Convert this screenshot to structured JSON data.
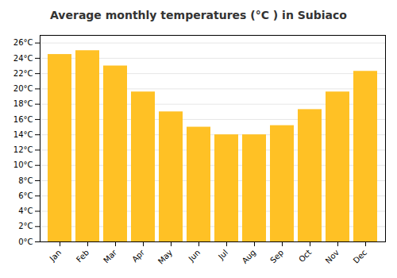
{
  "chart_data": {
    "type": "bar",
    "title": "Average monthly temperatures (°C ) in Subiaco",
    "categories": [
      "Jan",
      "Feb",
      "Mar",
      "Apr",
      "May",
      "Jun",
      "Jul",
      "Aug",
      "Sep",
      "Oct",
      "Nov",
      "Dec"
    ],
    "values": [
      24.5,
      25.0,
      23.0,
      19.6,
      17.0,
      15.0,
      14.0,
      14.0,
      15.2,
      17.3,
      19.6,
      22.3
    ],
    "color": "#FFC125",
    "ylim": [
      0,
      27
    ],
    "yticks": [
      {
        "value": 0,
        "label": "0°C"
      },
      {
        "value": 2,
        "label": "2°C"
      },
      {
        "value": 4,
        "label": "4°C"
      },
      {
        "value": 6,
        "label": "6°C"
      },
      {
        "value": 8,
        "label": "8°C"
      },
      {
        "value": 10,
        "label": "10°C"
      },
      {
        "value": 12,
        "label": "12°C"
      },
      {
        "value": 14,
        "label": "14°C"
      },
      {
        "value": 16,
        "label": "16°C"
      },
      {
        "value": 18,
        "label": "18°C"
      },
      {
        "value": 20,
        "label": "20°C"
      },
      {
        "value": 22,
        "label": "22°C"
      },
      {
        "value": 24,
        "label": "24°C"
      },
      {
        "value": 26,
        "label": "26°C"
      }
    ],
    "grid": true
  }
}
